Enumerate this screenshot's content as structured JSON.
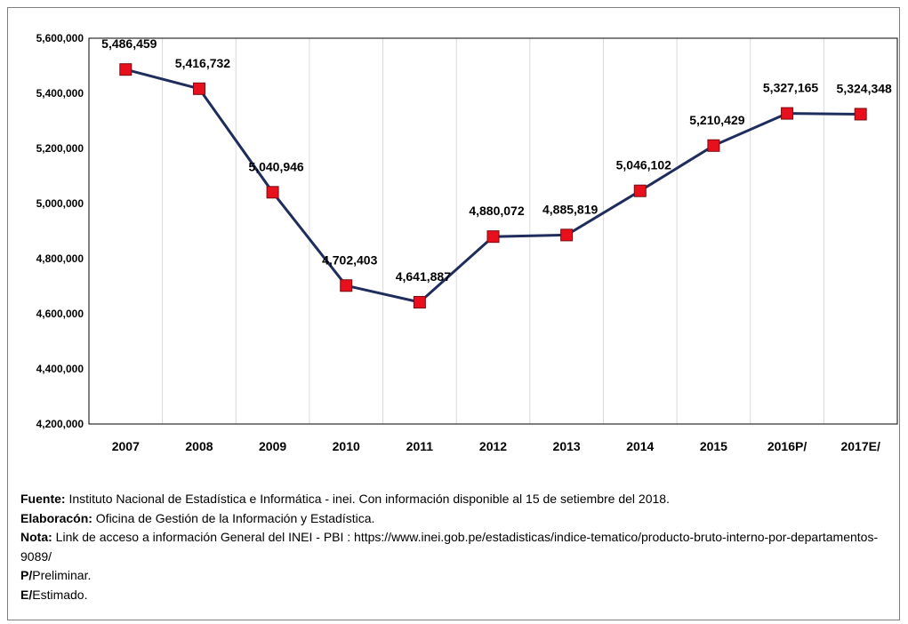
{
  "chart_data": {
    "type": "line",
    "categories": [
      "2007",
      "2008",
      "2009",
      "2010",
      "2011",
      "2012",
      "2013",
      "2014",
      "2015",
      "2016P/",
      "2017E/"
    ],
    "values": [
      5486459,
      5416732,
      5040946,
      4702403,
      4641887,
      4880072,
      4885819,
      5046102,
      5210429,
      5327165,
      5324348
    ],
    "data_labels": [
      "5,486,459",
      "5,416,732",
      "5,040,946",
      "4,702,403",
      "4,641,887",
      "4,880,072",
      "4,885,819",
      "5,046,102",
      "5,210,429",
      "5,327,165",
      "5,324,348"
    ],
    "y_ticks": [
      "4,200,000",
      "4,400,000",
      "4,600,000",
      "4,800,000",
      "5,000,000",
      "5,200,000",
      "5,400,000",
      "5,600,000"
    ],
    "ylim": [
      4200000,
      5600000
    ],
    "grid": "vertical",
    "line_color": "#1f2d5c",
    "marker_color": "#e8101c",
    "title": "",
    "xlabel": "",
    "ylabel": ""
  },
  "notes": [
    {
      "label": "Fuente:",
      "text": " Instituto Nacional de Estadística e Informática - inei. Con información disponible al 15 de setiembre del 2018."
    },
    {
      "label": "Elaboracón:",
      "text": " Oficina de Gestión de la Información y Estadística."
    },
    {
      "label": "Nota:",
      "text": " Link de acceso a información General del INEI - PBI : https://www.inei.gob.pe/estadisticas/indice-tematico/producto-bruto-interno-por-departamentos-9089/"
    },
    {
      "label": "P/",
      "text": "Preliminar."
    },
    {
      "label": "E/",
      "text": "Estimado."
    }
  ]
}
